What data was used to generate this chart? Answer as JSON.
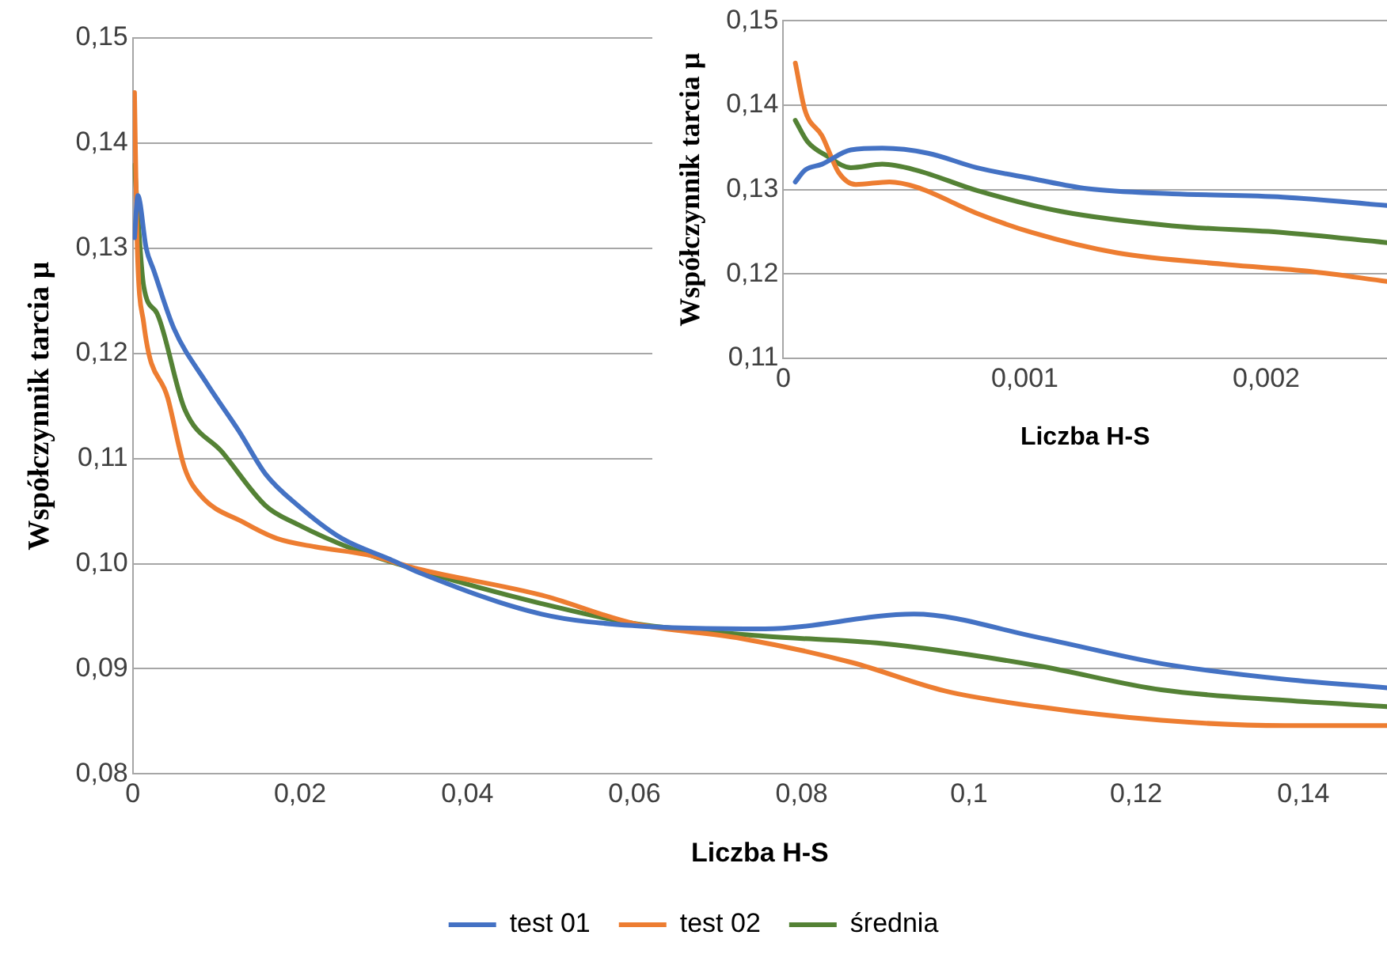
{
  "chart_data": [
    {
      "type": "line",
      "xlabel": "Liczba H-S",
      "ylabel": "Współczynnik tarcia µ",
      "xlim": [
        0,
        0.15
      ],
      "ylim": [
        0.08,
        0.15
      ],
      "xticks": [
        0,
        {
          "value": 0.02,
          "label": "0,02"
        },
        {
          "value": 0.04,
          "label": "0,04"
        },
        {
          "value": 0.06,
          "label": "0,06"
        },
        {
          "value": 0.08,
          "label": "0,08"
        },
        {
          "value": 0.1,
          "label": "0,1"
        },
        {
          "value": 0.12,
          "label": "0,12"
        },
        {
          "value": 0.14,
          "label": "0,14"
        }
      ],
      "yticks": [
        {
          "value": 0.08,
          "label": "0,08"
        },
        {
          "value": 0.09,
          "label": "0,09"
        },
        {
          "value": 0.1,
          "label": "0,10"
        },
        {
          "value": 0.11,
          "label": "0,11"
        },
        {
          "value": 0.12,
          "label": "0,12"
        },
        {
          "value": 0.13,
          "label": "0,13"
        },
        {
          "value": 0.14,
          "label": "0,14"
        },
        {
          "value": 0.15,
          "label": "0,15"
        }
      ],
      "grid": "y",
      "legend": "bottom",
      "marker": "none",
      "series": [
        {
          "name": "test 01",
          "color": "#4472c4",
          "x": [
            0.0002,
            0.0006,
            0.0016,
            0.0025,
            0.0049,
            0.0088,
            0.0127,
            0.0159,
            0.0198,
            0.025,
            0.0308,
            0.0341,
            0.0489,
            0.06,
            0.0756,
            0.0934,
            0.1082,
            0.123,
            0.1378,
            0.15
          ],
          "values": [
            0.131,
            0.135,
            0.13,
            0.1279,
            0.1224,
            0.1172,
            0.1126,
            0.1085,
            0.1055,
            0.1024,
            0.1004,
            0.0992,
            0.0952,
            0.0941,
            0.0938,
            0.0952,
            0.093,
            0.0905,
            0.089,
            0.0882
          ]
        },
        {
          "name": "test 02",
          "color": "#ed7d31",
          "x": [
            0.0002,
            0.0005,
            0.0013,
            0.0042,
            0.0062,
            0.0081,
            0.0133,
            0.0172,
            0.0218,
            0.0283,
            0.0341,
            0.0489,
            0.06,
            0.0727,
            0.086,
            0.0971,
            0.1082,
            0.123,
            0.1378,
            0.15
          ],
          "values": [
            0.1448,
            0.131,
            0.1229,
            0.1157,
            0.1091,
            0.1065,
            0.1039,
            0.1024,
            0.1016,
            0.1008,
            0.0995,
            0.097,
            0.0943,
            0.0929,
            0.0906,
            0.0879,
            0.0864,
            0.0851,
            0.0846,
            0.0846
          ]
        },
        {
          "name": "średnia",
          "color": "#548235",
          "x": [
            0.0002,
            0.0013,
            0.0029,
            0.0062,
            0.0107,
            0.0159,
            0.0198,
            0.0263,
            0.0341,
            0.0489,
            0.06,
            0.0756,
            0.0897,
            0.1082,
            0.123,
            0.1378,
            0.15
          ],
          "values": [
            0.1379,
            0.1264,
            0.1238,
            0.1147,
            0.1106,
            0.1055,
            0.1037,
            0.1014,
            0.0994,
            0.0962,
            0.0943,
            0.0931,
            0.0924,
            0.0903,
            0.088,
            0.087,
            0.0864
          ]
        }
      ]
    },
    {
      "type": "line",
      "xlabel": "Liczba H-S",
      "ylabel": "Współczynnik tarcia µ",
      "xlim": [
        0,
        0.0025
      ],
      "ylim": [
        0.11,
        0.15
      ],
      "xticks": [
        0,
        {
          "value": 0.001,
          "label": "0,001"
        },
        {
          "value": 0.002,
          "label": "0,002"
        }
      ],
      "yticks": [
        {
          "value": 0.11,
          "label": "0,11"
        },
        {
          "value": 0.12,
          "label": "0,12"
        },
        {
          "value": 0.13,
          "label": "0,13"
        },
        {
          "value": 0.14,
          "label": "0,14"
        },
        {
          "value": 0.15,
          "label": "0,15"
        }
      ],
      "grid": "y",
      "marker": "none",
      "series": [
        {
          "color": "#4472c4",
          "x": [
            5e-05,
            9e-05,
            0.00016,
            0.00028,
            0.00041,
            0.0006,
            0.0008,
            0.00103,
            0.00126,
            0.00161,
            0.00207,
            0.0025
          ],
          "values": [
            0.1309,
            0.1323,
            0.133,
            0.1347,
            0.1349,
            0.1343,
            0.1326,
            0.1313,
            0.1301,
            0.1295,
            0.1291,
            0.1281
          ]
        },
        {
          "color": "#ed7d31",
          "x": [
            5e-05,
            9e-05,
            0.00016,
            0.00023,
            0.0003,
            0.00044,
            0.00055,
            0.0008,
            0.00103,
            0.00138,
            0.00184,
            0.00218,
            0.0025
          ],
          "values": [
            0.145,
            0.1394,
            0.1364,
            0.132,
            0.1306,
            0.1309,
            0.1303,
            0.1272,
            0.1249,
            0.1225,
            0.1211,
            0.1203,
            0.1191
          ]
        },
        {
          "color": "#548235",
          "x": [
            5e-05,
            0.0001,
            0.00018,
            0.00028,
            0.00041,
            0.00055,
            0.0008,
            0.00115,
            0.00161,
            0.00207,
            0.0025
          ],
          "values": [
            0.1382,
            0.1357,
            0.134,
            0.1326,
            0.133,
            0.1323,
            0.1299,
            0.1274,
            0.1257,
            0.1249,
            0.1237
          ]
        }
      ]
    }
  ]
}
